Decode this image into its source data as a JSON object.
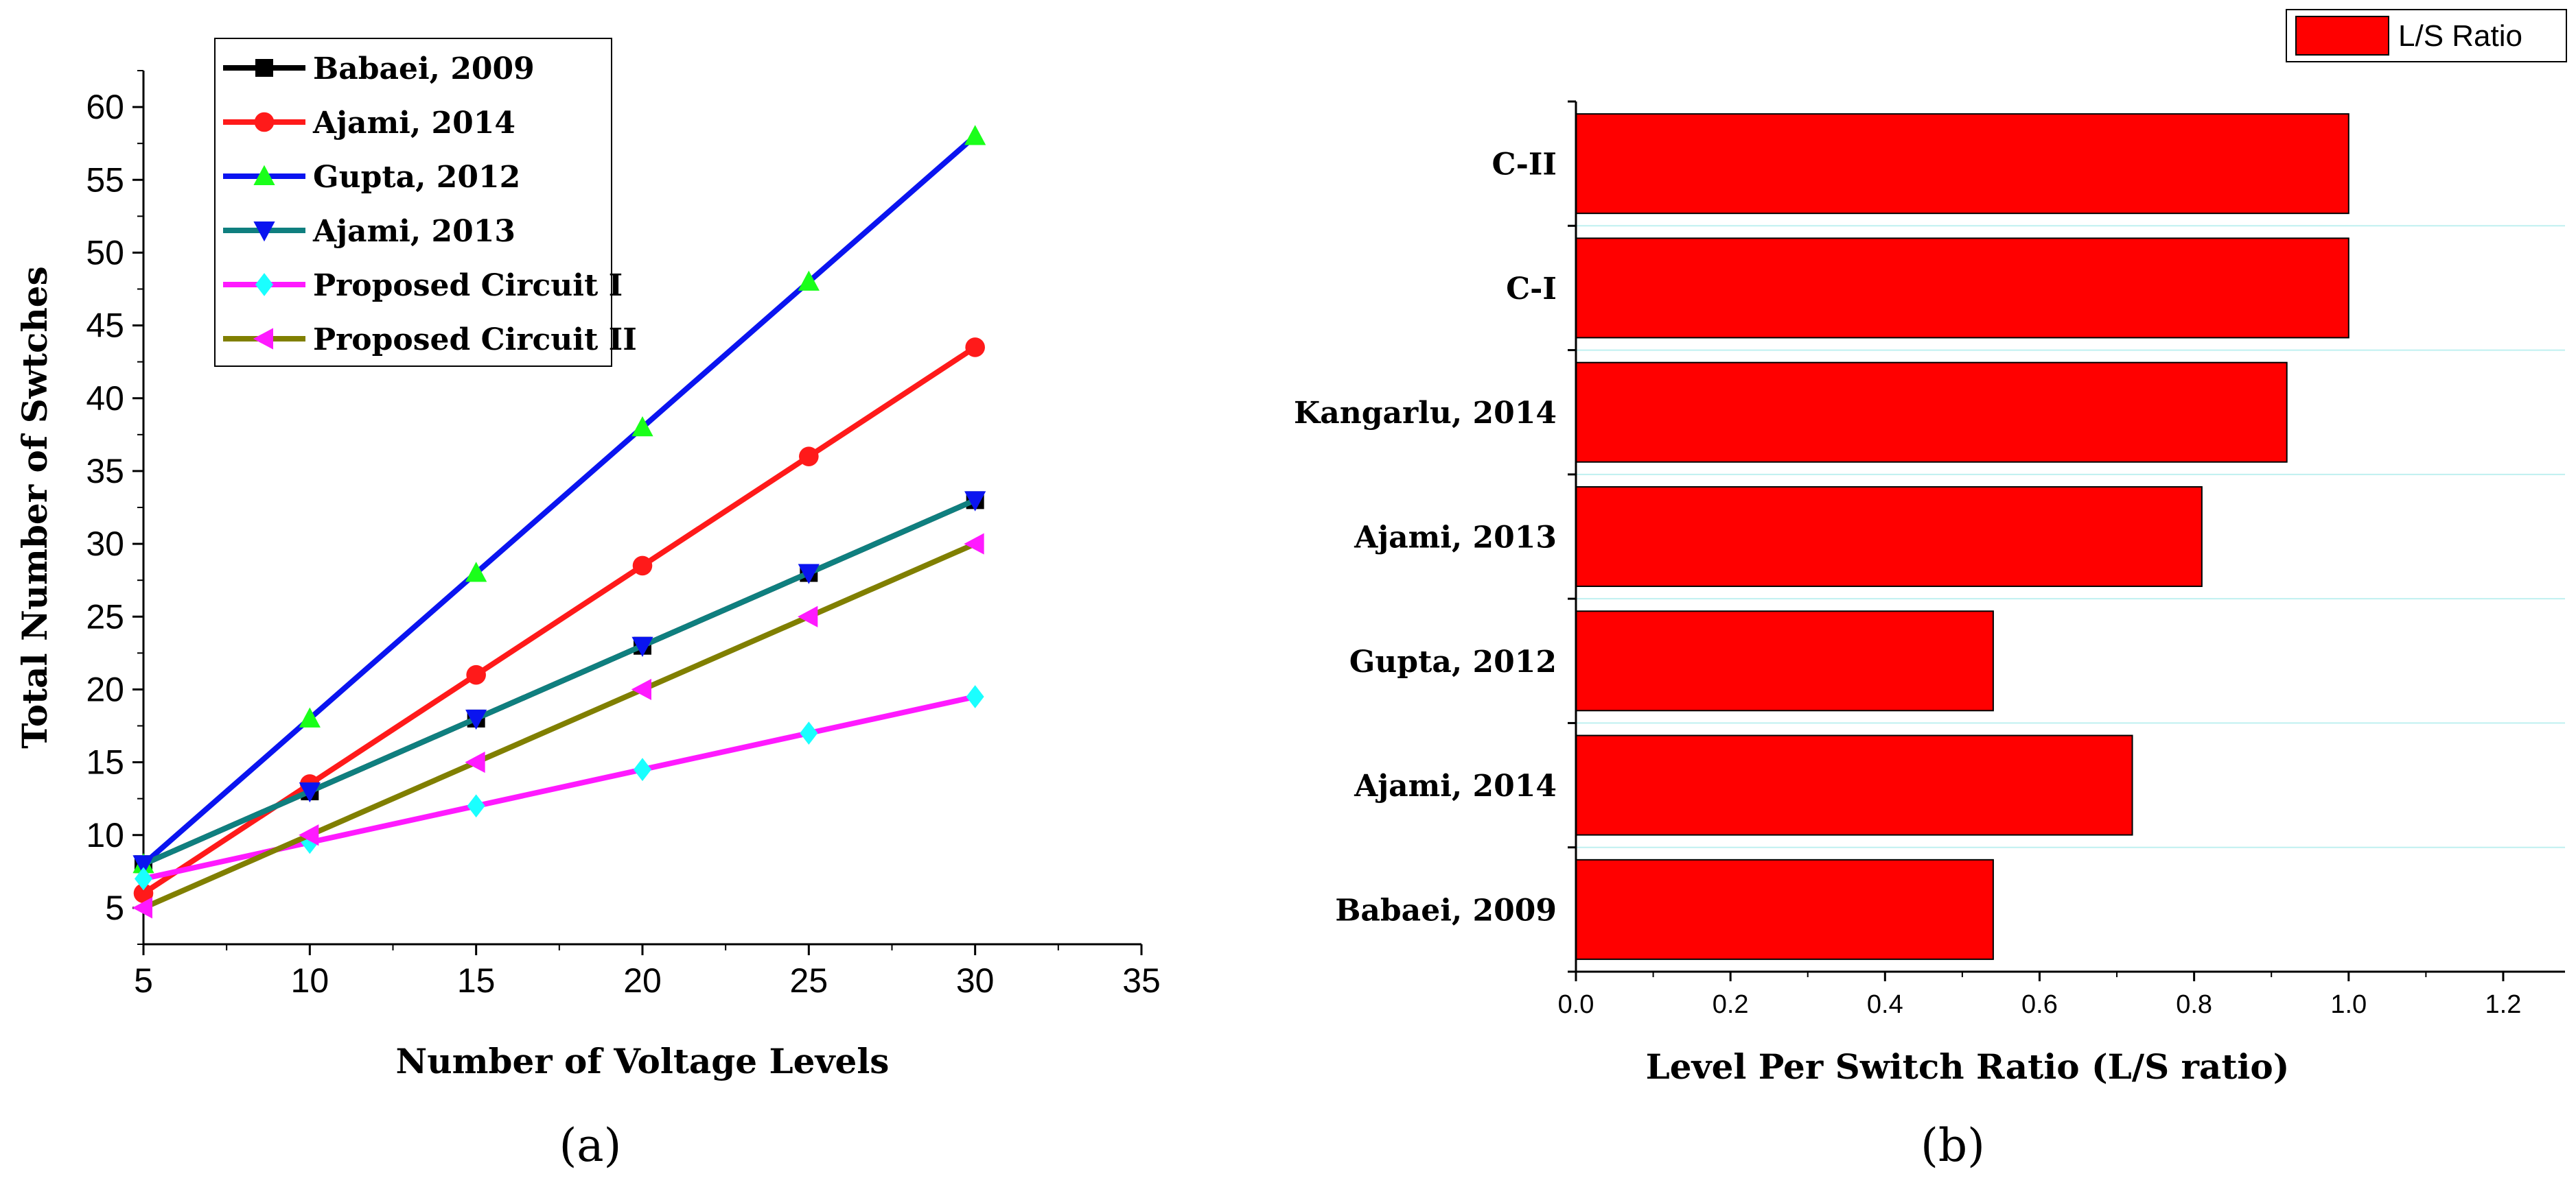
{
  "chart_data": [
    {
      "type": "line",
      "panel_label": "(a)",
      "title": "",
      "xlabel": "Number of Voltage Levels",
      "ylabel": "Total Number of Swtches",
      "xlim": [
        5,
        35
      ],
      "ylim": [
        2.5,
        62.5
      ],
      "xticks": [
        5,
        10,
        15,
        20,
        25,
        30,
        35
      ],
      "yticks": [
        5,
        10,
        15,
        20,
        25,
        30,
        35,
        40,
        45,
        50,
        55,
        60
      ],
      "grid": false,
      "legend_position": "top-left",
      "x": [
        5,
        10,
        15,
        20,
        25,
        30
      ],
      "series": [
        {
          "name": "Babaei, 2009",
          "values": [
            8,
            13,
            18,
            23,
            28,
            33
          ],
          "line_color": "#000000",
          "marker_color": "#000000",
          "marker": "square"
        },
        {
          "name": "Ajami, 2014",
          "values": [
            6,
            13.5,
            21,
            28.5,
            36,
            43.5
          ],
          "line_color": "#ff1a1a",
          "marker_color": "#ff1a1a",
          "marker": "circle"
        },
        {
          "name": "Gupta, 2012",
          "values": [
            8,
            18,
            28,
            38,
            48,
            58
          ],
          "line_color": "#0a14f0",
          "marker_color": "#1aff1a",
          "marker": "triangle-up"
        },
        {
          "name": "Ajami, 2013",
          "values": [
            8,
            13,
            18,
            23,
            28,
            33
          ],
          "line_color": "#0f7f7f",
          "marker_color": "#0a14f0",
          "marker": "triangle-down"
        },
        {
          "name": "Proposed Circuit I",
          "values": [
            7,
            9.5,
            12,
            14.5,
            17,
            19.5
          ],
          "line_color": "#ff1aff",
          "marker_color": "#1affff",
          "marker": "diamond"
        },
        {
          "name": "Proposed Circuit II",
          "values": [
            5,
            10,
            15,
            20,
            25,
            30
          ],
          "line_color": "#807f00",
          "marker_color": "#ff1aff",
          "marker": "triangle-left"
        }
      ]
    },
    {
      "type": "bar",
      "orientation": "horizontal",
      "panel_label": "(b)",
      "title": "",
      "xlabel": "Level Per Switch Ratio (L/S ratio)",
      "ylabel": "",
      "xlim": [
        0,
        1.28
      ],
      "xticks": [
        0.0,
        0.2,
        0.4,
        0.6,
        0.8,
        1.0,
        1.2
      ],
      "xtick_labels": [
        "0.0",
        "0.2",
        "0.4",
        "0.6",
        "0.8",
        "1.0",
        "1.2"
      ],
      "grid": true,
      "legend_position": "top-right",
      "legend_label": "L/S Ratio",
      "bar_color": "#ff0000",
      "categories": [
        "Babaei, 2009",
        "Ajami, 2014",
        "Gupta, 2012",
        "Ajami, 2013",
        "Kangarlu, 2014",
        "C-I",
        "C-II"
      ],
      "values": [
        0.54,
        0.72,
        0.54,
        0.81,
        0.92,
        1.0,
        1.0
      ]
    }
  ]
}
